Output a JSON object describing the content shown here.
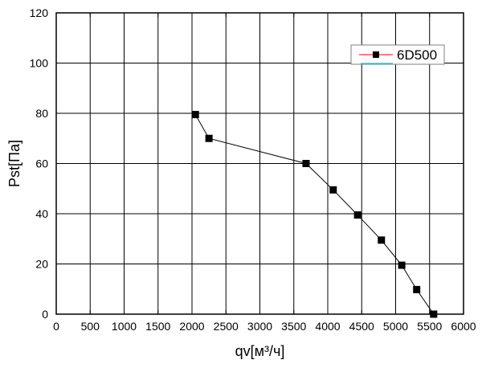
{
  "chart_data": {
    "type": "line",
    "title": "",
    "xlabel": "qv[м³/ч]",
    "ylabel": "Pst[Па]",
    "xlim": [
      0,
      6000
    ],
    "ylim": [
      0,
      120
    ],
    "xticks": [
      0,
      500,
      1000,
      1500,
      2000,
      2500,
      3000,
      3500,
      4000,
      4500,
      5000,
      5500,
      6000
    ],
    "yticks": [
      0,
      20,
      40,
      60,
      80,
      100,
      120
    ],
    "grid": true,
    "legend": {
      "position": "top-right"
    },
    "series": [
      {
        "name": "6D500",
        "color": "#000000",
        "marker": "square",
        "x": [
          2050,
          2250,
          3680,
          4080,
          4440,
          4790,
          5090,
          5310,
          5560
        ],
        "y": [
          79.5,
          70,
          60,
          49.5,
          39.5,
          29.5,
          19.5,
          9.8,
          0
        ]
      }
    ]
  }
}
